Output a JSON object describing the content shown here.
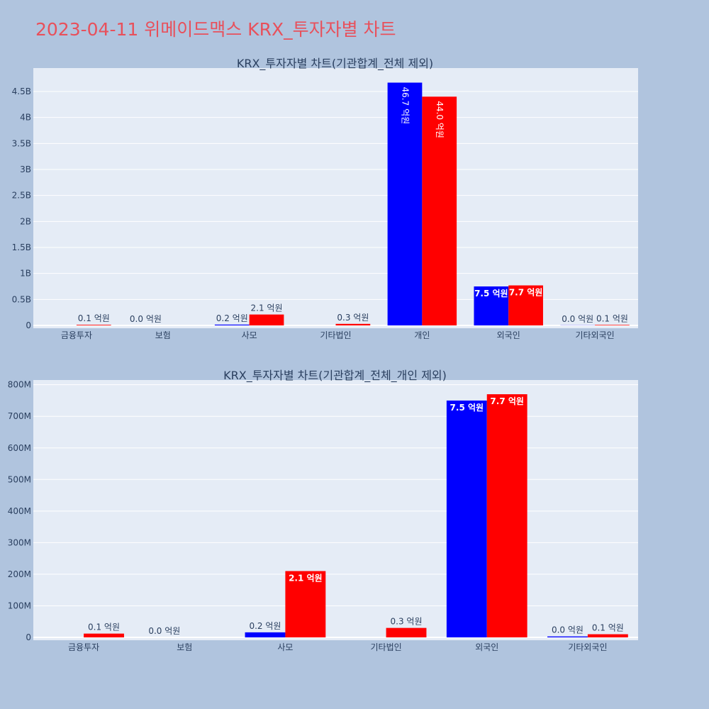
{
  "page_title": "2023-04-11 위메이드맥스 KRX_투자자별 차트",
  "colors": {
    "buy": "#0000ff",
    "sell": "#ff0000",
    "plot_bg": "#e5ecf6",
    "page_bg": "#b0c4de",
    "axis_text": "#2a3f5f"
  },
  "chart_data": [
    {
      "type": "bar",
      "title": "KRX_투자자별 차트(기관합계_전체 제외)",
      "categories": [
        "금융투자",
        "보험",
        "사모",
        "기타법인",
        "개인",
        "외국인",
        "기타외국인"
      ],
      "series": [
        {
          "values": [
            0,
            0,
            16000000,
            0,
            4670000000,
            750000000,
            3000000
          ],
          "labels": [
            "",
            "0.0 억원",
            "0.2 억원",
            "",
            "46.7 억원",
            "7.5 억원",
            "0.0 억원"
          ]
        },
        {
          "values": [
            12000000,
            0,
            210000000,
            30000000,
            4400000000,
            770000000,
            10000000
          ],
          "labels": [
            "0.1 억원",
            "",
            "2.1 억원",
            "0.3 억원",
            "44.0 억원",
            "7.7 억원",
            "0.1 억원"
          ]
        }
      ],
      "ylim": [
        0,
        4950000000
      ],
      "yticks": [
        0,
        500000000,
        1000000000,
        1500000000,
        2000000000,
        2500000000,
        3000000000,
        3500000000,
        4000000000,
        4500000000
      ],
      "ytick_labels": [
        "0",
        "0.5B",
        "1B",
        "1.5B",
        "2B",
        "2.5B",
        "3B",
        "3.5B",
        "4B",
        "4.5B"
      ],
      "grid": true
    },
    {
      "type": "bar",
      "title": "KRX_투자자별 차트(기관합계_전체_개인 제외)",
      "categories": [
        "금융투자",
        "보험",
        "사모",
        "기타법인",
        "외국인",
        "기타외국인"
      ],
      "series": [
        {
          "values": [
            0,
            0,
            16000000,
            0,
            750000000,
            3000000
          ],
          "labels": [
            "",
            "0.0 억원",
            "0.2 억원",
            "",
            "7.5 억원",
            "0.0 억원"
          ]
        },
        {
          "values": [
            12000000,
            0,
            210000000,
            30000000,
            770000000,
            10000000
          ],
          "labels": [
            "0.1 억원",
            "",
            "2.1 억원",
            "0.3 억원",
            "7.7 억원",
            "0.1 억원"
          ]
        }
      ],
      "ylim": [
        0,
        815000000
      ],
      "yticks": [
        0,
        100000000,
        200000000,
        300000000,
        400000000,
        500000000,
        600000000,
        700000000,
        800000000
      ],
      "ytick_labels": [
        "0",
        "100M",
        "200M",
        "300M",
        "400M",
        "500M",
        "600M",
        "700M",
        "800M"
      ],
      "grid": true
    }
  ]
}
